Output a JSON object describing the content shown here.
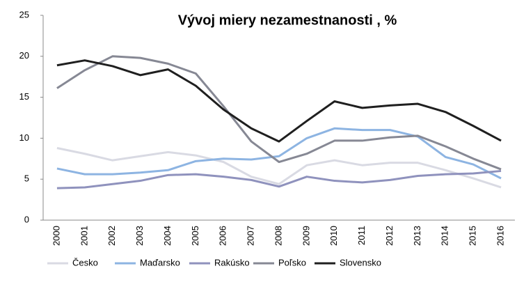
{
  "chart_data": {
    "type": "line",
    "title": "Vývoj miery nezamestnanosti , %",
    "categories": [
      "2000",
      "2001",
      "2002",
      "2003",
      "2004",
      "2005",
      "2006",
      "2007",
      "2008",
      "2009",
      "2010",
      "2011",
      "2012",
      "2013",
      "2014",
      "2015",
      "2016"
    ],
    "series": [
      {
        "name": "Česko",
        "color": "#d9dae3",
        "values": [
          8.8,
          8.1,
          7.3,
          7.8,
          8.3,
          7.9,
          7.1,
          5.3,
          4.4,
          6.7,
          7.3,
          6.7,
          7.0,
          7.0,
          6.1,
          5.1,
          4.0
        ]
      },
      {
        "name": "Maďarsko",
        "color": "#8db4e2",
        "values": [
          6.3,
          5.6,
          5.6,
          5.8,
          6.1,
          7.2,
          7.5,
          7.4,
          7.8,
          10.0,
          11.2,
          11.0,
          11.0,
          10.2,
          7.7,
          6.8,
          5.1
        ]
      },
      {
        "name": "Rakúsko",
        "color": "#8f92bd",
        "values": [
          3.9,
          4.0,
          4.4,
          4.8,
          5.5,
          5.6,
          5.3,
          4.9,
          4.1,
          5.3,
          4.8,
          4.6,
          4.9,
          5.4,
          5.6,
          5.7,
          6.0
        ]
      },
      {
        "name": "Poľsko",
        "color": "#868894",
        "values": [
          16.1,
          18.3,
          20.0,
          19.8,
          19.1,
          17.9,
          13.9,
          9.6,
          7.1,
          8.1,
          9.7,
          9.7,
          10.1,
          10.3,
          9.0,
          7.5,
          6.2
        ]
      },
      {
        "name": "Slovensko",
        "color": "#1f1f1f",
        "values": [
          18.9,
          19.5,
          18.8,
          17.7,
          18.4,
          16.4,
          13.5,
          11.2,
          9.6,
          12.1,
          14.5,
          13.7,
          14.0,
          14.2,
          13.2,
          11.5,
          9.7
        ]
      }
    ],
    "ylim": [
      0,
      25
    ],
    "yticks": [
      0,
      5,
      10,
      15,
      20,
      25
    ],
    "grid": false,
    "legend": "bottom"
  }
}
